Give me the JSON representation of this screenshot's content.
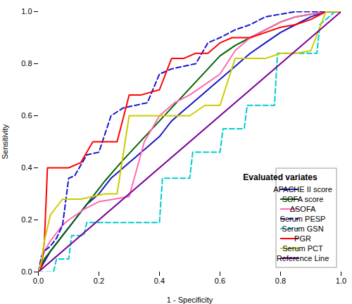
{
  "chart_data": {
    "type": "line",
    "xlabel": "1 - Specificity",
    "ylabel": "Sensitivity",
    "legend_title": "Evaluated variates",
    "legend": "lower right",
    "grid": false,
    "xlim": [
      0.0,
      1.0
    ],
    "ylim": [
      0.0,
      1.0
    ],
    "xticks": [
      {
        "value": 0.0,
        "label": "0.0"
      },
      0.2,
      0.4,
      0.6,
      0.8,
      {
        "value": 1.0,
        "label": "1.0"
      }
    ],
    "yticks": [
      {
        "value": 0.0,
        "label": "0.0"
      },
      0.2,
      0.4,
      0.6,
      0.8,
      {
        "value": 1.0,
        "label": "1.0"
      }
    ],
    "series": [
      {
        "name": "APACHE II score",
        "color": "#1515CD",
        "line_style": "solid",
        "x": [
          0.0,
          0.02,
          0.04,
          0.06,
          0.08,
          0.1,
          0.12,
          0.14,
          0.16,
          0.18,
          0.2,
          0.22,
          0.24,
          0.26,
          0.28,
          0.3,
          0.32,
          0.34,
          0.36,
          0.38,
          0.4,
          0.42,
          0.44,
          0.46,
          0.48,
          0.5,
          0.52,
          0.54,
          0.56,
          0.58,
          0.6,
          0.62,
          0.64,
          0.66,
          0.68,
          0.7,
          0.75,
          0.8,
          0.85,
          0.9,
          0.95,
          1.0
        ],
        "values": [
          0.0,
          0.04,
          0.08,
          0.11,
          0.14,
          0.17,
          0.2,
          0.23,
          0.26,
          0.28,
          0.3,
          0.33,
          0.36,
          0.38,
          0.4,
          0.42,
          0.44,
          0.46,
          0.48,
          0.5,
          0.52,
          0.55,
          0.58,
          0.6,
          0.62,
          0.64,
          0.66,
          0.68,
          0.7,
          0.72,
          0.74,
          0.76,
          0.78,
          0.8,
          0.82,
          0.84,
          0.88,
          0.92,
          0.95,
          0.98,
          1.0,
          1.0
        ]
      },
      {
        "name": "SOFA score",
        "color": "#006400",
        "line_style": "solid",
        "x": [
          0.0,
          0.01,
          0.02,
          0.04,
          0.06,
          0.08,
          0.1,
          0.12,
          0.14,
          0.16,
          0.18,
          0.2,
          0.22,
          0.25,
          0.28,
          0.32,
          0.36,
          0.4,
          0.44,
          0.48,
          0.52,
          0.56,
          0.6,
          0.65,
          0.7,
          0.75,
          0.8,
          0.85,
          0.9,
          0.95,
          1.0
        ],
        "values": [
          0.0,
          0.02,
          0.05,
          0.08,
          0.11,
          0.14,
          0.17,
          0.2,
          0.23,
          0.26,
          0.29,
          0.32,
          0.35,
          0.39,
          0.43,
          0.48,
          0.53,
          0.58,
          0.63,
          0.68,
          0.73,
          0.78,
          0.83,
          0.87,
          0.9,
          0.93,
          0.96,
          0.98,
          0.99,
          1.0,
          1.0
        ]
      },
      {
        "name": "ΔSOFA",
        "color": "#FF69B4",
        "line_style": "solid",
        "x": [
          0.0,
          0.01,
          0.02,
          0.04,
          0.06,
          0.08,
          0.1,
          0.15,
          0.2,
          0.25,
          0.3,
          0.35,
          0.4,
          0.45,
          0.5,
          0.55,
          0.6,
          0.65,
          0.7,
          0.75,
          0.8,
          0.85,
          0.9,
          0.95,
          1.0
        ],
        "values": [
          0.0,
          0.04,
          0.08,
          0.12,
          0.15,
          0.18,
          0.2,
          0.24,
          0.27,
          0.28,
          0.29,
          0.5,
          0.6,
          0.65,
          0.68,
          0.72,
          0.76,
          0.85,
          0.9,
          0.93,
          0.96,
          0.98,
          0.99,
          1.0,
          1.0
        ]
      },
      {
        "name": "Serum PESP",
        "color": "#1515CD",
        "line_style": "dashed",
        "x": [
          0.0,
          0.01,
          0.02,
          0.04,
          0.06,
          0.08,
          0.1,
          0.12,
          0.16,
          0.2,
          0.24,
          0.28,
          0.32,
          0.36,
          0.4,
          0.44,
          0.48,
          0.52,
          0.56,
          0.6,
          0.65,
          0.7,
          0.75,
          0.8,
          0.85,
          0.9,
          0.95,
          1.0
        ],
        "values": [
          0.0,
          0.06,
          0.08,
          0.1,
          0.13,
          0.18,
          0.36,
          0.37,
          0.45,
          0.46,
          0.6,
          0.63,
          0.64,
          0.65,
          0.76,
          0.78,
          0.79,
          0.8,
          0.88,
          0.9,
          0.93,
          0.95,
          0.98,
          0.99,
          1.0,
          1.0,
          1.0,
          1.0
        ]
      },
      {
        "name": "Serum GSN",
        "color": "#00CDCD",
        "line_style": "dashed",
        "x": [
          0.0,
          0.01,
          0.02,
          0.05,
          0.06,
          0.1,
          0.11,
          0.15,
          0.16,
          0.4,
          0.41,
          0.5,
          0.51,
          0.6,
          0.61,
          0.68,
          0.69,
          0.78,
          0.79,
          0.92,
          0.93,
          0.98,
          1.0
        ],
        "values": [
          0.0,
          0.0,
          0.0,
          0.0,
          0.05,
          0.05,
          0.14,
          0.14,
          0.19,
          0.19,
          0.36,
          0.36,
          0.46,
          0.46,
          0.55,
          0.55,
          0.64,
          0.64,
          0.84,
          0.84,
          0.95,
          1.0,
          1.0
        ]
      },
      {
        "name": "PGR",
        "color": "#FF0000",
        "line_style": "solid",
        "x": [
          0.0,
          0.01,
          0.02,
          0.03,
          0.04,
          0.06,
          0.08,
          0.1,
          0.14,
          0.18,
          0.22,
          0.26,
          0.3,
          0.34,
          0.4,
          0.44,
          0.48,
          0.52,
          0.56,
          0.6,
          0.64,
          0.7,
          0.75,
          0.8,
          0.85,
          0.9,
          0.95,
          1.0
        ],
        "values": [
          0.0,
          0.02,
          0.12,
          0.4,
          0.4,
          0.4,
          0.4,
          0.4,
          0.42,
          0.5,
          0.5,
          0.5,
          0.68,
          0.68,
          0.7,
          0.82,
          0.82,
          0.84,
          0.84,
          0.88,
          0.9,
          0.9,
          0.92,
          0.94,
          0.95,
          0.97,
          1.0,
          1.0
        ]
      },
      {
        "name": "Serum PCT",
        "color": "#CCCC00",
        "line_style": "solid",
        "x": [
          0.0,
          0.01,
          0.02,
          0.04,
          0.06,
          0.08,
          0.1,
          0.12,
          0.14,
          0.18,
          0.22,
          0.26,
          0.3,
          0.34,
          0.38,
          0.42,
          0.46,
          0.5,
          0.55,
          0.6,
          0.65,
          0.7,
          0.75,
          0.8,
          0.85,
          0.9,
          0.95,
          1.0
        ],
        "values": [
          0.0,
          0.04,
          0.12,
          0.22,
          0.25,
          0.28,
          0.28,
          0.28,
          0.28,
          0.29,
          0.3,
          0.3,
          0.6,
          0.6,
          0.6,
          0.6,
          0.6,
          0.6,
          0.64,
          0.64,
          0.82,
          0.82,
          0.82,
          0.84,
          0.84,
          0.85,
          1.0,
          1.0
        ]
      },
      {
        "name": "Reference Line",
        "color": "#7B0097",
        "line_style": "solid",
        "x": [
          0.0,
          1.0
        ],
        "values": [
          0.0,
          1.0
        ]
      }
    ]
  }
}
